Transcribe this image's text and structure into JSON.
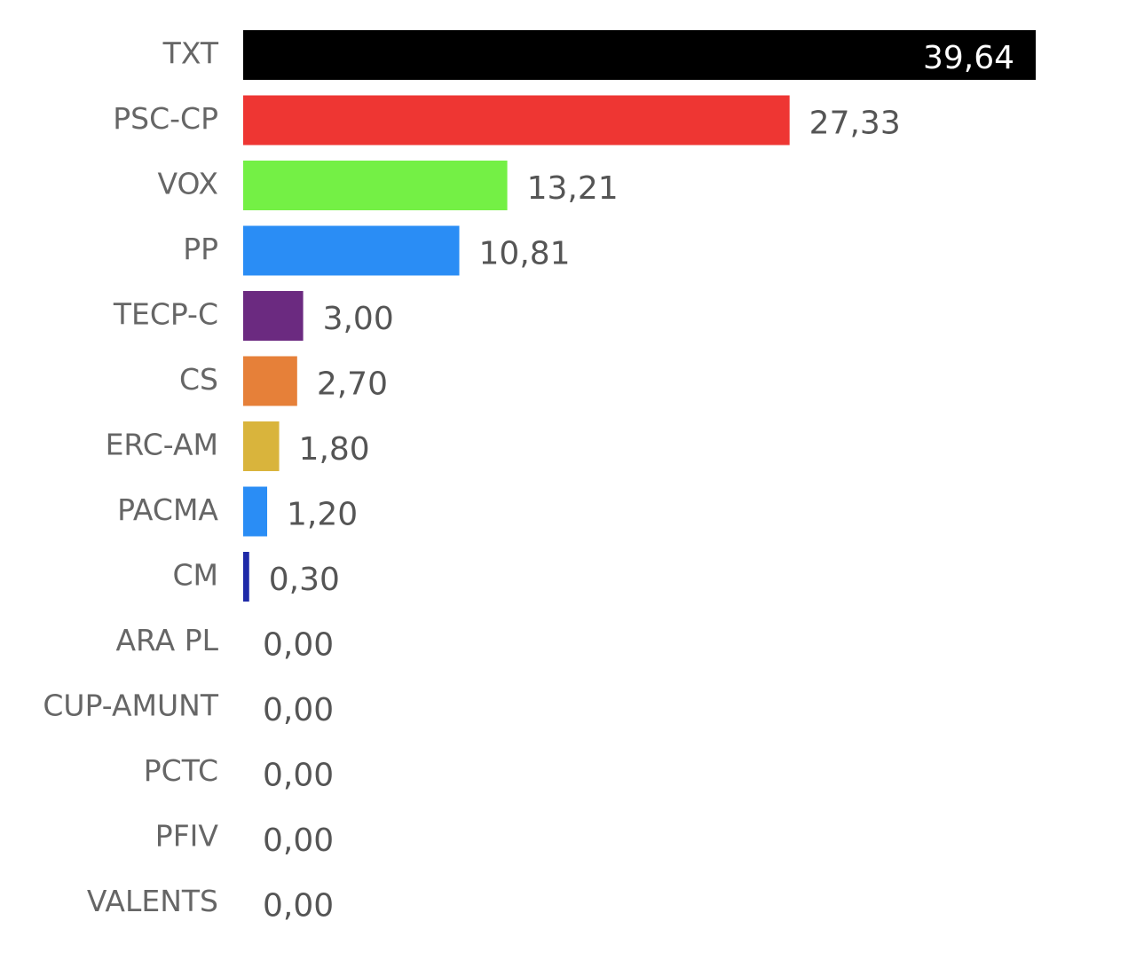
{
  "chart_data": {
    "type": "bar",
    "orientation": "horizontal",
    "categories": [
      "TXT",
      "PSC-CP",
      "VOX",
      "PP",
      "TECP-C",
      "CS",
      "ERC-AM",
      "PACMA",
      "CM",
      "ARA PL",
      "CUP-AMUNT",
      "PCTC",
      "PFIV",
      "VALENTS"
    ],
    "values": [
      39.64,
      27.33,
      13.21,
      10.81,
      3.0,
      2.7,
      1.8,
      1.2,
      0.3,
      0,
      0,
      0,
      0,
      0
    ],
    "value_labels": [
      "39,64",
      "27,33",
      "13,21",
      "10,81",
      "3,00",
      "2,70",
      "1,80",
      "1,20",
      "0,30",
      "0,00",
      "0,00",
      "0,00",
      "0,00",
      "0,00"
    ],
    "colors": [
      "#000000",
      "#ee3633",
      "#74f045",
      "#2a8df5",
      "#6b2a80",
      "#e68039",
      "#d9b43c",
      "#2a8df5",
      "#1f2aa8",
      null,
      null,
      null,
      null,
      null
    ]
  }
}
